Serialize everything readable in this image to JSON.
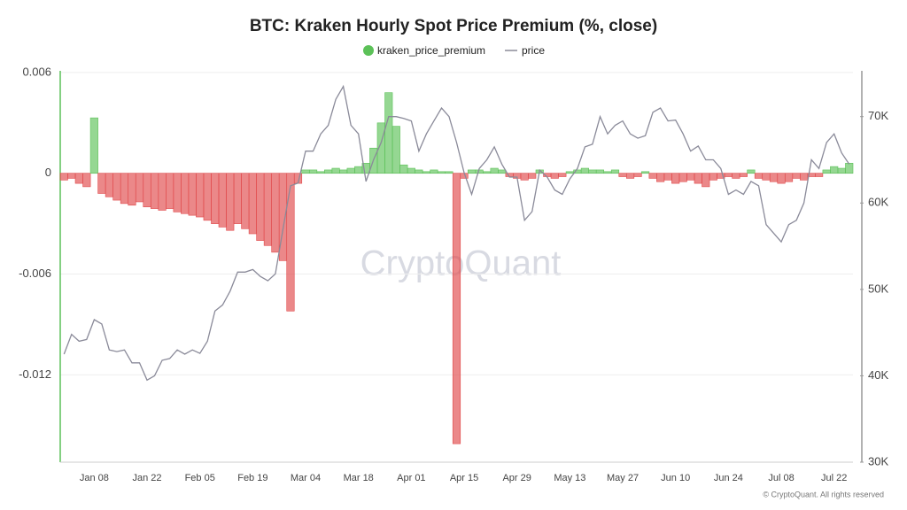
{
  "chart_data": {
    "type": "bar-line",
    "title": "BTC: Kraken Hourly Spot Price Premium (%, close)",
    "watermark": "CryptoQuant",
    "footer": "© CryptoQuant. All rights reserved",
    "categories": [
      null,
      null,
      null,
      null,
      "Jan 08",
      null,
      null,
      null,
      null,
      null,
      null,
      "Jan 22",
      null,
      null,
      null,
      null,
      null,
      null,
      "Feb 05",
      null,
      null,
      null,
      null,
      null,
      null,
      "Feb 19",
      null,
      null,
      null,
      null,
      null,
      null,
      "Mar 04",
      null,
      null,
      null,
      null,
      null,
      null,
      "Mar 18",
      null,
      null,
      null,
      null,
      null,
      null,
      "Apr 01",
      null,
      null,
      null,
      null,
      null,
      null,
      "Apr 15",
      null,
      null,
      null,
      null,
      null,
      null,
      "Apr 29",
      null,
      null,
      null,
      null,
      null,
      null,
      "May 13",
      null,
      null,
      null,
      null,
      null,
      null,
      "May 27",
      null,
      null,
      null,
      null,
      null,
      null,
      "Jun 10",
      null,
      null,
      null,
      null,
      null,
      null,
      "Jun 24",
      null,
      null,
      null,
      null,
      null,
      null,
      "Jul 08",
      null,
      null,
      null,
      null,
      null,
      null,
      "Jul 22",
      null,
      null
    ],
    "series": [
      {
        "name": "kraken_price_premium",
        "color": "#5cc158",
        "negative_color": "#e0484a",
        "values": [
          -0.0004,
          -0.0003,
          -0.0006,
          -0.0008,
          0.0033,
          -0.0012,
          -0.0014,
          -0.0016,
          -0.0018,
          -0.0019,
          -0.0017,
          -0.002,
          -0.0021,
          -0.0022,
          -0.0021,
          -0.0023,
          -0.0024,
          -0.0025,
          -0.0026,
          -0.0028,
          -0.003,
          -0.0032,
          -0.0034,
          -0.003,
          -0.0033,
          -0.0036,
          -0.004,
          -0.0043,
          -0.0047,
          -0.0052,
          -0.0082,
          -0.0006,
          0.0002,
          0.0002,
          0.0001,
          0.0002,
          0.0003,
          0.0002,
          0.0003,
          0.0004,
          0.0006,
          0.0015,
          0.003,
          0.0048,
          0.0028,
          0.0005,
          0.0003,
          0.0002,
          0.0001,
          0.0002,
          0.0001,
          0.0001,
          -0.0161,
          -0.0003,
          0.0002,
          0.0002,
          0.0001,
          0.0003,
          0.0002,
          -0.0002,
          -0.0003,
          -0.0004,
          -0.0003,
          0.0002,
          -0.0002,
          -0.0003,
          -0.0002,
          0.0001,
          0.0002,
          0.0003,
          0.0002,
          0.0002,
          0.0001,
          0.0002,
          -0.0002,
          -0.0003,
          -0.0002,
          0.0001,
          -0.0003,
          -0.0005,
          -0.0004,
          -0.0006,
          -0.0005,
          -0.0004,
          -0.0006,
          -0.0008,
          -0.0004,
          -0.0003,
          -0.0002,
          -0.0003,
          -0.0002,
          0.0002,
          -0.0003,
          -0.0004,
          -0.0005,
          -0.0006,
          -0.0005,
          -0.0003,
          -0.0004,
          -0.0002,
          -0.0002,
          0.0002,
          0.0004,
          0.0003,
          0.0006
        ]
      },
      {
        "name": "price",
        "color": "#8a8a99",
        "axis": "y2",
        "values": [
          42500,
          44800,
          44000,
          44200,
          46500,
          46000,
          43000,
          42800,
          43000,
          41500,
          41500,
          39500,
          40000,
          41800,
          42000,
          43000,
          42500,
          43000,
          42600,
          44000,
          47500,
          48200,
          49800,
          52000,
          52000,
          52300,
          51500,
          51000,
          51800,
          57000,
          62000,
          62300,
          66000,
          66000,
          68000,
          69000,
          72000,
          73500,
          69000,
          68000,
          62500,
          65000,
          67000,
          70000,
          70000,
          69800,
          69500,
          66000,
          68000,
          69500,
          71000,
          70000,
          67000,
          63500,
          61000,
          64000,
          65000,
          66500,
          64500,
          63000,
          63000,
          58000,
          59000,
          63800,
          63000,
          61500,
          61000,
          62800,
          64000,
          66500,
          66800,
          70000,
          68000,
          69000,
          69500,
          68000,
          67500,
          67800,
          70500,
          71000,
          69500,
          69600,
          68000,
          66000,
          66600,
          65000,
          65000,
          64000,
          61000,
          61500,
          61000,
          62500,
          62000,
          57500,
          56500,
          55500,
          57500,
          58000,
          60000,
          65000,
          64000,
          67000,
          68000,
          65800,
          64500
        ]
      }
    ],
    "ylim": [
      -0.0172,
      0.0061
    ],
    "yticks": [
      0.006,
      0,
      -0.006,
      -0.012
    ],
    "y2lim": [
      30000,
      75300
    ],
    "y2ticks": [
      {
        "value": 70000,
        "label": "70K"
      },
      {
        "value": 60000,
        "label": "60K"
      },
      {
        "value": 50000,
        "label": "50K"
      },
      {
        "value": 40000,
        "label": "40K"
      },
      {
        "value": 30000,
        "label": "30K"
      }
    ],
    "grid": true,
    "legend": "top"
  }
}
